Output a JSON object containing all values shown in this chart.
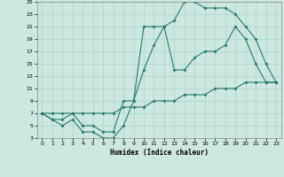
{
  "xlabel": "Humidex (Indice chaleur)",
  "bg_color": "#cce8e0",
  "line_color": "#2a7a6a",
  "grid_color": "#aad4cc",
  "xlim": [
    -0.5,
    23.5
  ],
  "ylim": [
    3,
    25
  ],
  "xticks": [
    0,
    1,
    2,
    3,
    4,
    5,
    6,
    7,
    8,
    9,
    10,
    11,
    12,
    13,
    14,
    15,
    16,
    17,
    18,
    19,
    20,
    21,
    22,
    23
  ],
  "yticks": [
    3,
    5,
    7,
    9,
    11,
    13,
    15,
    17,
    19,
    21,
    23,
    25
  ],
  "line1_x": [
    0,
    1,
    2,
    3,
    4,
    5,
    6,
    7,
    8,
    9,
    10,
    11,
    12,
    13,
    14,
    15,
    16,
    17,
    18,
    19,
    20,
    21,
    22,
    23
  ],
  "line1_y": [
    7,
    6,
    6,
    7,
    5,
    5,
    4,
    4,
    9,
    9,
    21,
    21,
    21,
    22,
    25,
    25,
    24,
    24,
    24,
    23,
    21,
    19,
    15,
    12
  ],
  "line2_x": [
    0,
    1,
    2,
    3,
    4,
    5,
    6,
    7,
    8,
    9,
    10,
    11,
    12,
    13,
    14,
    15,
    16,
    17,
    18,
    19,
    20,
    21,
    22,
    23
  ],
  "line2_y": [
    7,
    6,
    5,
    6,
    4,
    4,
    3,
    3,
    5,
    9,
    14,
    18,
    21,
    14,
    14,
    16,
    17,
    17,
    18,
    21,
    19,
    15,
    12,
    12
  ],
  "line3_x": [
    0,
    1,
    2,
    3,
    4,
    5,
    6,
    7,
    8,
    9,
    10,
    11,
    12,
    13,
    14,
    15,
    16,
    17,
    18,
    19,
    20,
    21,
    22,
    23
  ],
  "line3_y": [
    7,
    7,
    7,
    7,
    7,
    7,
    7,
    7,
    8,
    8,
    8,
    9,
    9,
    9,
    10,
    10,
    10,
    11,
    11,
    11,
    12,
    12,
    12,
    12
  ]
}
